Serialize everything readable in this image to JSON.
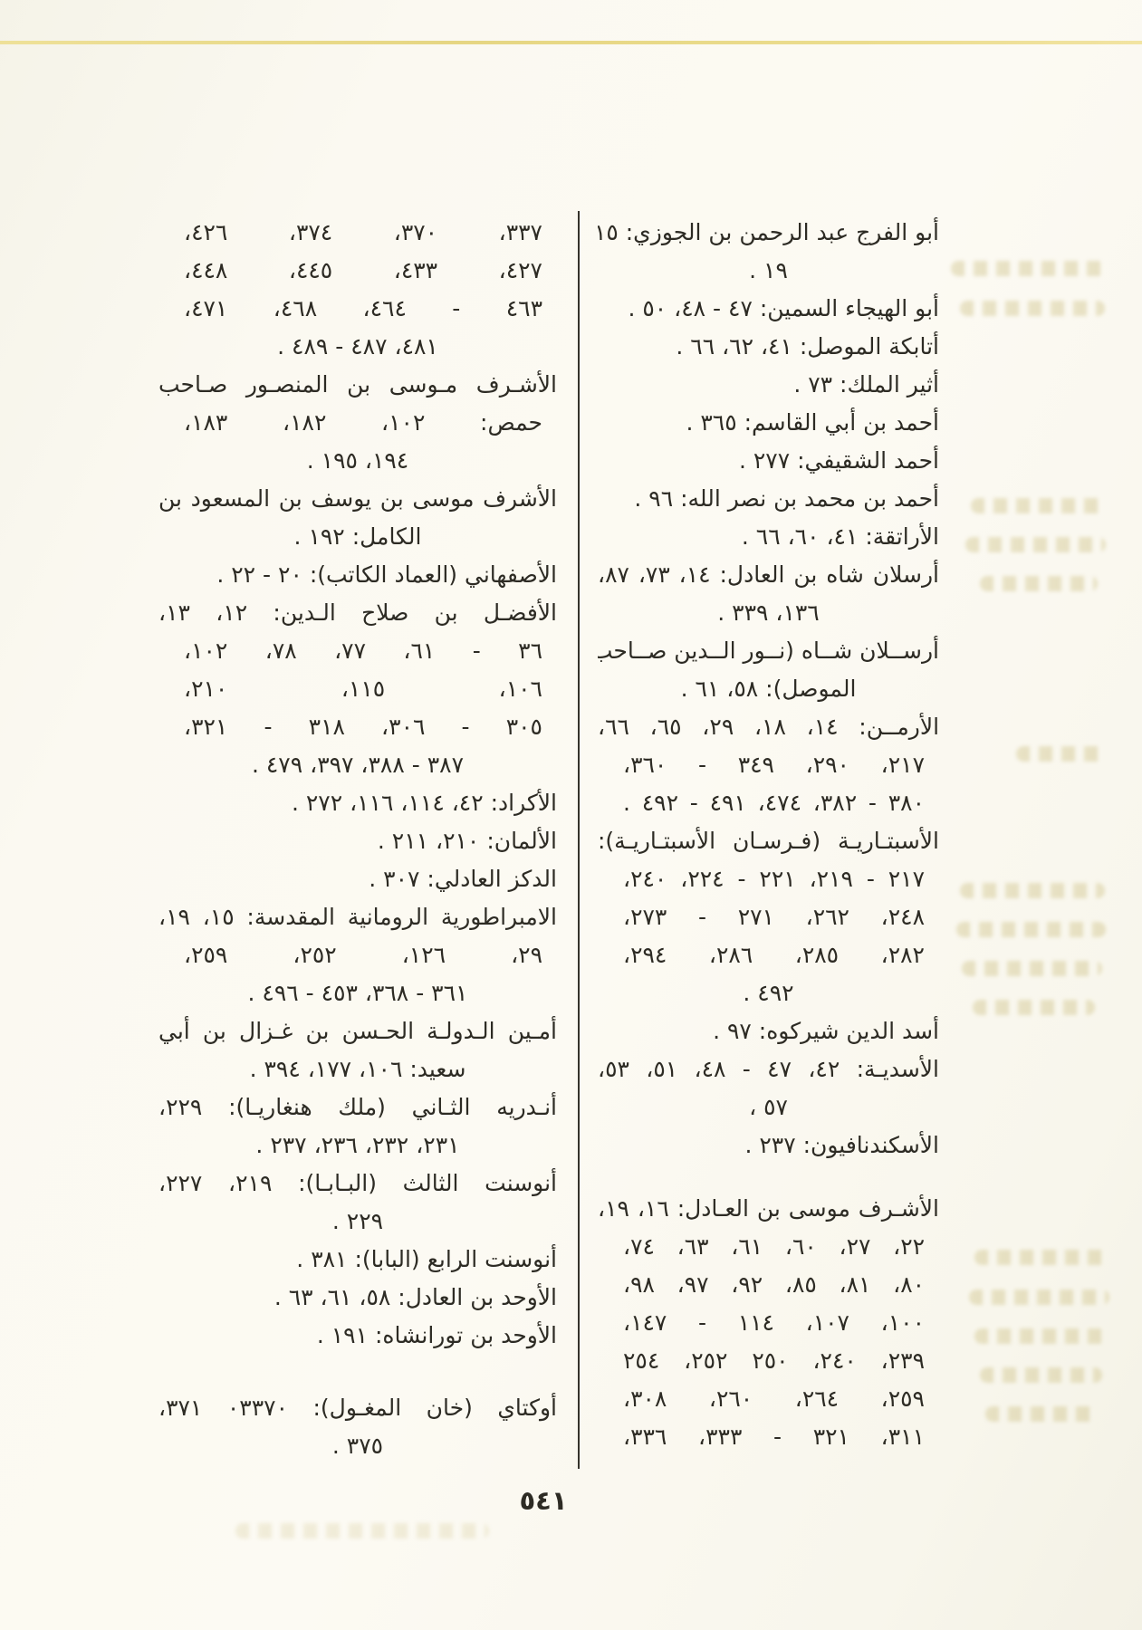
{
  "page": {
    "number": "٥٤١"
  },
  "colors": {
    "paper": "#fbf9f1",
    "ink": "#2d2b24",
    "divider_rule": "#35332c",
    "top_edge_line": "#e5d377",
    "bleed_through": "#cec183"
  },
  "columns": {
    "right": {
      "lines": [
        {
          "t": "أبو الفرج عبد الرحمن بن الجوزي: ١٥،",
          "s": "j"
        },
        {
          "t": "١٩ .",
          "s": "c"
        },
        {
          "t": "أبو الهيجاء السمين: ٤٧ - ٤٨، ٥٠ .",
          "s": "r"
        },
        {
          "t": "أتابكة الموصل: ٤١، ٦٢، ٦٦ .",
          "s": "r"
        },
        {
          "t": "أثير الملك: ٧٣ .",
          "s": "r"
        },
        {
          "t": "أحمد بن أبي القاسم: ٣٦٥ .",
          "s": "r"
        },
        {
          "t": "أحمد الشقيفي: ٢٧٧ .",
          "s": "r"
        },
        {
          "t": "أحمد بن محمد بن نصر الله: ٩٦ .",
          "s": "r"
        },
        {
          "t": "الأراتقة: ٤١، ٦٠، ٦٦ .",
          "s": "r"
        },
        {
          "t": "أرسلان شاه بن العادل: ١٤، ٧٣، ٨٧،",
          "s": "j"
        },
        {
          "t": "١٣٦، ٣٣٩ .",
          "s": "c"
        },
        {
          "t": "أرســلان شــاه (نــور الــدين صــاحب",
          "s": "j"
        },
        {
          "t": "الموصل): ٥٨، ٦١ .",
          "s": "c"
        },
        {
          "t": "الأرمــن: ١٤، ١٨، ٢٩، ٦٥، ٦٦،",
          "s": "j"
        },
        {
          "t": "٢١٧، ٢٩٠، ٣٤٩ - ٣٦٠،",
          "s": "jn"
        },
        {
          "t": "٣٨٠ - ٣٨٢، ٤٧٤، ٤٩١ - ٤٩٢ .",
          "s": "jn"
        },
        {
          "t": "الأسبتـاريـة (فـرسـان الأسبتـاريـة):",
          "s": "j"
        },
        {
          "t": "٢١٧ - ٢١٩، ٢٢١ - ٢٢٤، ٢٤٠،",
          "s": "jn"
        },
        {
          "t": "٢٤٨، ٢٦٢، ٢٧١ - ٢٧٣،",
          "s": "jn"
        },
        {
          "t": "٢٨٢، ٢٨٥، ٢٨٦، ٢٩٤،",
          "s": "jn"
        },
        {
          "t": "٤٩٢ .",
          "s": "c"
        },
        {
          "t": "أسد الدين شيركوه: ٩٧ .",
          "s": "r"
        },
        {
          "t": "الأسديـة: ٤٢، ٤٧ - ٤٨، ٥١، ٥٣،",
          "s": "j"
        },
        {
          "t": "٥٧ ،",
          "s": "c"
        },
        {
          "t": "الأسكندنافيون: ٢٣٧ .",
          "s": "r"
        },
        {
          "gap": true,
          "h": 28
        },
        {
          "t": "الأشـرف موسى بن العـادل: ١٦، ١٩،",
          "s": "j"
        },
        {
          "t": "٢٢، ٢٧، ٦٠، ٦١، ٦٣، ٧٤،",
          "s": "jn"
        },
        {
          "t": "٨٠، ٨١، ٨٥، ٩٢، ٩٧، ٩٨،",
          "s": "jn"
        },
        {
          "t": "١٠٠، ١٠٧، ١١٤ - ١٤٧،",
          "s": "jn"
        },
        {
          "t": "٢٣٩، ٢٤٠، ٢٥٠ ٢٥٢، ٢٥٤",
          "s": "jn"
        },
        {
          "t": "٢٥٩، ٢٦٤، ٢٦٠، ٣٠٨،",
          "s": "jn"
        },
        {
          "t": "٣١١، ٣٢١ - ٣٣٣، ٣٣٦،",
          "s": "jn"
        }
      ]
    },
    "left": {
      "lines": [
        {
          "t": "٣٣٧، ٣٧٠، ٣٧٤، ٤٢٦،",
          "s": "jn"
        },
        {
          "t": "٤٢٧، ٤٣٣، ٤٤٥، ٤٤٨،",
          "s": "jn"
        },
        {
          "t": "٤٦٣ - ٤٦٤، ٤٦٨، ٤٧١،",
          "s": "jn"
        },
        {
          "t": "٤٨١، ٤٨٧ - ٤٨٩ .",
          "s": "c"
        },
        {
          "t": "الأشـرف مـوسى بن المنصـور صـاحب",
          "s": "j"
        },
        {
          "t": "حمص: ١٠٢، ١٨٢، ١٨٣،",
          "s": "jn"
        },
        {
          "t": "١٩٤، ١٩٥ .",
          "s": "c"
        },
        {
          "t": "الأشرف موسى بن يوسف بن المسعود بن",
          "s": "j"
        },
        {
          "t": "الكامل: ١٩٢ .",
          "s": "c"
        },
        {
          "t": "الأصفهاني (العماد الكاتب): ٢٠ - ٢٢ .",
          "s": "r"
        },
        {
          "t": "الأفضـل بن صلاح الـدين: ١٢، ١٣،",
          "s": "j"
        },
        {
          "t": "٣٦ - ٦١، ٧٧، ٧٨، ١٠٢،",
          "s": "jn"
        },
        {
          "t": "١٠٦، ١١٥، ٢١٠،",
          "s": "jn"
        },
        {
          "t": "٣٠٥ - ٣٠٦، ٣١٨ - ٣٢١،",
          "s": "jn"
        },
        {
          "t": "٣٨٧ - ٣٨٨، ٣٩٧، ٤٧٩ .",
          "s": "c"
        },
        {
          "t": "الأكراد: ٤٢، ١١٤، ١١٦، ٢٧٢ .",
          "s": "r"
        },
        {
          "t": "الألمان: ٢١٠، ٢١١ .",
          "s": "r"
        },
        {
          "t": "الدكز العادلي: ٣٠٧ .",
          "s": "r"
        },
        {
          "t": "الامبراطورية الرومانية المقدسة: ١٥، ١٩،",
          "s": "j"
        },
        {
          "t": "٢٩، ١٢٦، ٢٥٢، ٢٥٩،",
          "s": "jn"
        },
        {
          "t": "٣٦١ - ٣٦٨، ٤٥٣ - ٤٩٦ .",
          "s": "c"
        },
        {
          "t": "أمـين الـدولـة الحـسن بن غـزال بن أبي",
          "s": "j"
        },
        {
          "t": "سعيد: ١٠٦، ١٧٧، ٣٩٤ .",
          "s": "c"
        },
        {
          "t": "أنـدريه الثـاني (ملك هنغاريـا): ٢٢٩،",
          "s": "j"
        },
        {
          "t": "٢٣١، ٢٣٢، ٢٣٦، ٢٣٧ .",
          "s": "c"
        },
        {
          "t": "أنوسنت الثالث (البـابـا): ٢١٩، ٢٢٧،",
          "s": "j"
        },
        {
          "t": "٢٢٩ .",
          "s": "c"
        },
        {
          "t": "أنوسنت الرابع (البابا): ٣٨١ .",
          "s": "r"
        },
        {
          "t": "الأوحد بن العادل: ٥٨، ٦١، ٦٣ .",
          "s": "r"
        },
        {
          "t": "الأوحد بن تورانشاه: ١٩١ .",
          "s": "r"
        },
        {
          "gap": true,
          "h": 38
        },
        {
          "t": "أوكتاي (خان المغـول): ٠٣٣٧٠ ٣٧١،",
          "s": "j"
        },
        {
          "t": "٣٧٥ .",
          "s": "c"
        }
      ]
    }
  }
}
